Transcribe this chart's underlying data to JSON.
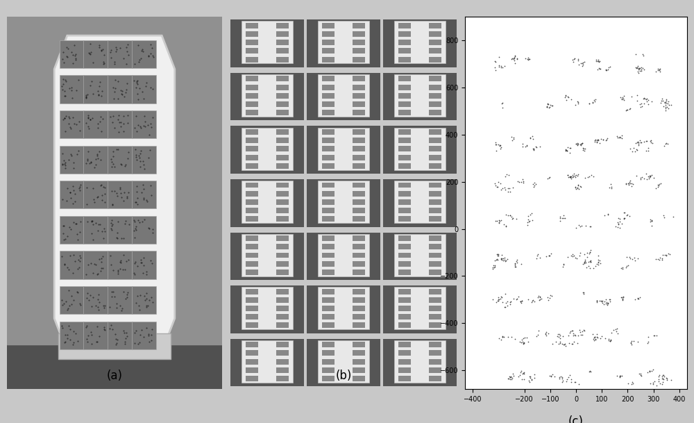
{
  "fig_width": 10.0,
  "fig_height": 6.09,
  "dpi": 100,
  "background_color": "#c8c8c8",
  "panel_a": {
    "label": "(a)",
    "bg_color": "#888888"
  },
  "panel_b": {
    "label": "(b)",
    "bg_color": "#aaaaaa"
  },
  "panel_c": {
    "label": "(c)",
    "bg_color": "#e0e0e0",
    "xlim": [
      -430,
      430
    ],
    "ylim": [
      -680,
      900
    ],
    "xticks": [
      -400,
      -200,
      -100,
      0,
      100,
      200,
      300,
      400
    ],
    "yticks": [
      -600,
      -400,
      -200,
      0,
      200,
      400,
      600,
      800
    ],
    "plot_bg": "#ffffff",
    "point_color": "#333333",
    "point_size": 1.5,
    "num_points": 800,
    "seed": 42
  },
  "label_fontsize": 12,
  "tick_fontsize": 7,
  "subplot_rects": {
    "a": [
      0.01,
      0.08,
      0.31,
      0.88
    ],
    "b": [
      0.33,
      0.08,
      0.33,
      0.88
    ],
    "c": [
      0.67,
      0.08,
      0.32,
      0.88
    ]
  }
}
